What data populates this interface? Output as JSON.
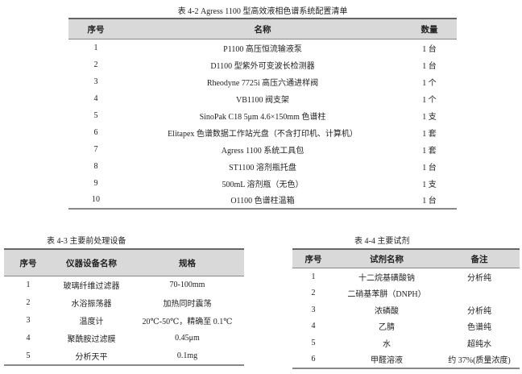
{
  "table_4_2": {
    "caption": "表 4-2    Agress 1100 型高效液相色谱系统配置清单",
    "headers": [
      "序号",
      "名称",
      "数量"
    ],
    "rows": [
      [
        "1",
        "P1100 高压恒流输液泵",
        "1 台"
      ],
      [
        "2",
        "D1100 型紫外可变波长检测器",
        "1 台"
      ],
      [
        "3",
        "Rheodyne 7725i 高压六通进样阀",
        "1 个"
      ],
      [
        "4",
        "VB1100 阀支架",
        "1 个"
      ],
      [
        "5",
        "SinoPak C18 5μm 4.6×150mm 色谱柱",
        "1 支"
      ],
      [
        "6",
        "Elitapex 色谱数据工作站光盘（不含打印机、计算机）",
        "1 套"
      ],
      [
        "7",
        "Agress 1100 系统工具包",
        "1 套"
      ],
      [
        "8",
        "ST1100 溶剂瓶托盘",
        "1 台"
      ],
      [
        "9",
        "500mL 溶剂瓶（无色）",
        "1 支"
      ],
      [
        "10",
        "O1100 色谱柱温箱",
        "1 台"
      ]
    ]
  },
  "table_4_3": {
    "caption": "表 4-3    主要前处理设备",
    "headers": [
      "序号",
      "仪器设备名称",
      "规格"
    ],
    "rows": [
      [
        "1",
        "玻璃纤维过滤器",
        "70-100mm"
      ],
      [
        "2",
        "水浴振荡器",
        "加热同时震荡"
      ],
      [
        "3",
        "温度计",
        "20℃-50℃，精确至 0.1℃"
      ],
      [
        "4",
        "聚酰胺过滤膜",
        "0.45μm"
      ],
      [
        "5",
        "分析天平",
        "0.1mg"
      ]
    ]
  },
  "table_4_4": {
    "caption": "表 4-4    主要试剂",
    "headers": [
      "序号",
      "试剂名称",
      "备注"
    ],
    "rows": [
      [
        "1",
        "十二烷基磺酸钠",
        "分析纯"
      ],
      [
        "2",
        "二硝基苯肼（DNPH）",
        ""
      ],
      [
        "3",
        "浓磷酸",
        "分析纯"
      ],
      [
        "4",
        "乙腈",
        "色谱纯"
      ],
      [
        "5",
        "水",
        "超纯水"
      ],
      [
        "6",
        "甲醛溶液",
        "约 37%(质量浓度)"
      ]
    ]
  }
}
